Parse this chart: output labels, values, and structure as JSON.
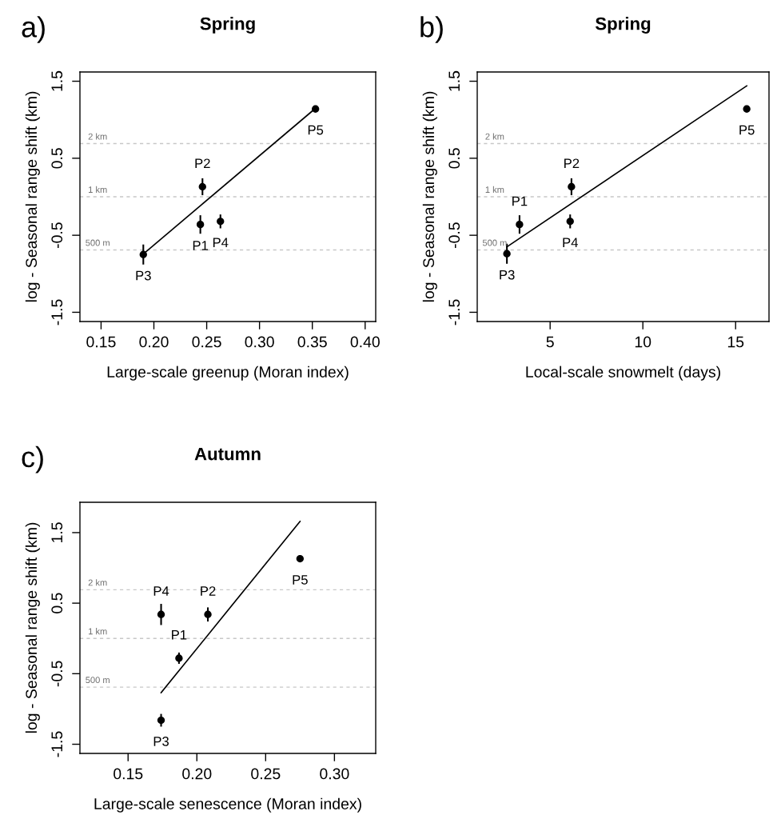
{
  "chart_data": [
    {
      "type": "scatter",
      "title": "Spring",
      "xlabel": "Large-scale greenup (Moran index)",
      "ylabel": "log - Seasonal range shift (km)",
      "x": [
        0.244,
        0.246,
        0.19,
        0.263,
        0.353
      ],
      "grid": false,
      "legend": false,
      "series": [
        {
          "type": "scatter",
          "marker": "circle",
          "color": "#000000",
          "values": [
            -0.36,
            0.13,
            -0.75,
            -0.32,
            1.14
          ],
          "errors": [
            0.12,
            0.11,
            0.13,
            0.09,
            null
          ]
        },
        {
          "type": "line",
          "color": "#000000",
          "x": [
            0.192,
            0.354
          ],
          "values": [
            -0.72,
            1.16
          ]
        }
      ],
      "xlim": [
        0.13,
        0.41
      ],
      "xticks": [
        {
          "value": 0.15,
          "label": "0.15"
        },
        {
          "value": 0.2,
          "label": "0.20"
        },
        {
          "value": 0.25,
          "label": "0.25"
        },
        {
          "value": 0.3,
          "label": "0.30"
        },
        {
          "value": 0.35,
          "label": "0.35"
        },
        {
          "value": 0.4,
          "label": "0.40"
        }
      ],
      "ylim": [
        -1.62,
        1.62
      ],
      "yticks": [
        -1.5,
        -0.5,
        0.5,
        1.5
      ],
      "ref_lines": [
        {
          "axis": "y",
          "value": 0.69,
          "label": "2 km",
          "color": "#c8c8c8",
          "line_style": "dashed"
        },
        {
          "axis": "y",
          "value": 0,
          "label": "1 km",
          "color": "#c8c8c8",
          "line_style": "dashed"
        },
        {
          "axis": "y",
          "value": -0.69,
          "label": "500 m",
          "color": "#c8c8c8",
          "line_style": "dashed"
        }
      ],
      "annotations": [
        "a)",
        {
          "text": "P1",
          "x": 0.244,
          "y": -0.36
        },
        {
          "text": "P2",
          "x": 0.246,
          "y": 0.13
        },
        {
          "text": "P3",
          "x": 0.19,
          "y": -0.75
        },
        {
          "text": "P4",
          "x": 0.263,
          "y": -0.32
        },
        {
          "text": "P5",
          "x": 0.353,
          "y": 1.14
        }
      ]
    },
    {
      "type": "scatter",
      "title": "Spring",
      "xlabel": "Local-scale snowmelt (days)",
      "ylabel": "log - Seasonal range shift (km)",
      "x": [
        3.35,
        6.15,
        2.67,
        6.08,
        15.6
      ],
      "grid": false,
      "legend": false,
      "series": [
        {
          "type": "scatter",
          "marker": "circle",
          "color": "#000000",
          "values": [
            -0.36,
            0.13,
            -0.74,
            -0.32,
            1.14
          ],
          "errors": [
            0.12,
            0.11,
            0.13,
            0.09,
            null
          ]
        },
        {
          "type": "line",
          "color": "#000000",
          "x": [
            2.67,
            15.6
          ],
          "values": [
            -0.65,
            1.44
          ]
        }
      ],
      "xlim": [
        1.07,
        16.8
      ],
      "xticks": [
        5,
        10,
        15
      ],
      "ylim": [
        -1.62,
        1.62
      ],
      "yticks": [
        -1.5,
        -0.5,
        0.5,
        1.5
      ],
      "ref_lines": [
        {
          "axis": "y",
          "value": 0.69,
          "label": "2 km",
          "color": "#c8c8c8",
          "line_style": "dashed"
        },
        {
          "axis": "y",
          "value": 0,
          "label": "1 km",
          "color": "#c8c8c8",
          "line_style": "dashed"
        },
        {
          "axis": "y",
          "value": -0.69,
          "label": "500 m",
          "color": "#c8c8c8",
          "line_style": "dashed"
        }
      ],
      "annotations": [
        "b)",
        {
          "text": "P1",
          "x": 3.35,
          "y": -0.36
        },
        {
          "text": "P2",
          "x": 6.15,
          "y": 0.13
        },
        {
          "text": "P3",
          "x": 2.67,
          "y": -0.74
        },
        {
          "text": "P4",
          "x": 6.08,
          "y": -0.32
        },
        {
          "text": "P5",
          "x": 15.6,
          "y": 1.14
        }
      ]
    },
    {
      "type": "scatter",
      "title": "Autumn",
      "xlabel": "Large-scale senescence (Moran index)",
      "ylabel": "log - Seasonal range shift (km)",
      "x": [
        0.187,
        0.208,
        0.174,
        0.174,
        0.275
      ],
      "grid": false,
      "legend": false,
      "series": [
        {
          "type": "scatter",
          "marker": "circle",
          "color": "#000000",
          "values": [
            -0.28,
            0.34,
            -1.16,
            0.34,
            1.13
          ],
          "errors": [
            0.08,
            0.1,
            0.09,
            0.15,
            null
          ]
        },
        {
          "type": "line",
          "color": "#000000",
          "x": [
            0.174,
            0.275
          ],
          "values": [
            -0.77,
            1.66
          ]
        }
      ],
      "xlim": [
        0.115,
        0.33
      ],
      "xticks": [
        {
          "value": 0.15,
          "label": "0.15"
        },
        {
          "value": 0.2,
          "label": "0.20"
        },
        {
          "value": 0.25,
          "label": "0.25"
        },
        {
          "value": 0.3,
          "label": "0.30"
        }
      ],
      "ylim": [
        -1.63,
        1.93
      ],
      "yticks": [
        -1.5,
        -0.5,
        0.5,
        1.5
      ],
      "ref_lines": [
        {
          "axis": "y",
          "value": 0.69,
          "label": "2 km",
          "color": "#c8c8c8",
          "line_style": "dashed"
        },
        {
          "axis": "y",
          "value": 0,
          "label": "1 km",
          "color": "#c8c8c8",
          "line_style": "dashed"
        },
        {
          "axis": "y",
          "value": -0.69,
          "label": "500 m",
          "color": "#c8c8c8",
          "line_style": "dashed"
        }
      ],
      "annotations": [
        "c)",
        {
          "text": "P1",
          "x": 0.187,
          "y": -0.28
        },
        {
          "text": "P2",
          "x": 0.208,
          "y": 0.34
        },
        {
          "text": "P3",
          "x": 0.174,
          "y": -1.16
        },
        {
          "text": "P4",
          "x": 0.174,
          "y": 0.34
        },
        {
          "text": "P5",
          "x": 0.275,
          "y": 1.13
        }
      ]
    }
  ]
}
